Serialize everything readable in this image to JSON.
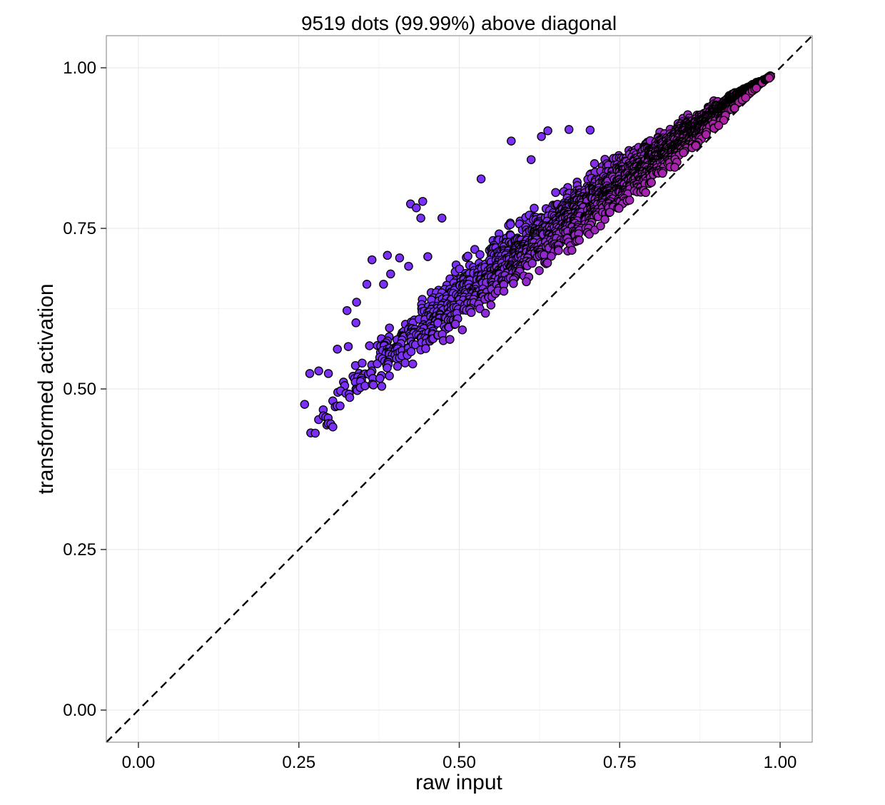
{
  "chart_data": {
    "type": "scatter",
    "title": "9519 dots (99.99%) above diagonal",
    "xlabel": "raw input",
    "ylabel": "transformed activation",
    "xlim": [
      -0.05,
      1.05
    ],
    "ylim": [
      -0.05,
      1.05
    ],
    "x_ticks": [
      "0.00",
      "0.25",
      "0.50",
      "0.75",
      "1.00"
    ],
    "y_ticks": [
      "0.00",
      "0.25",
      "0.50",
      "0.75",
      "1.00"
    ],
    "grid": true,
    "reference_line": {
      "type": "identity",
      "style": "dashed",
      "color": "#000000"
    },
    "colors": {
      "low": "#7B2FF7",
      "mid": "#B0209E",
      "high": "#E8232E",
      "outline": "#000000"
    },
    "points_shown": 9519,
    "percent_above_diagonal": 99.99,
    "outliers": [
      [
        0.259,
        0.476
      ],
      [
        0.267,
        0.524
      ],
      [
        0.281,
        0.528
      ],
      [
        0.31,
        0.562
      ],
      [
        0.327,
        0.566
      ],
      [
        0.325,
        0.622
      ],
      [
        0.339,
        0.603
      ],
      [
        0.34,
        0.635
      ],
      [
        0.356,
        0.663
      ],
      [
        0.364,
        0.701
      ],
      [
        0.382,
        0.663
      ],
      [
        0.388,
        0.708
      ],
      [
        0.393,
        0.679
      ],
      [
        0.407,
        0.704
      ],
      [
        0.421,
        0.691
      ],
      [
        0.424,
        0.788
      ],
      [
        0.433,
        0.782
      ],
      [
        0.44,
        0.766
      ],
      [
        0.443,
        0.792
      ],
      [
        0.451,
        0.706
      ],
      [
        0.473,
        0.766
      ],
      [
        0.534,
        0.827
      ],
      [
        0.581,
        0.886
      ],
      [
        0.628,
        0.893
      ],
      [
        0.638,
        0.902
      ],
      [
        0.671,
        0.904
      ],
      [
        0.704,
        0.903
      ],
      [
        0.612,
        0.857
      ],
      [
        0.296,
        0.524
      ],
      [
        0.315,
        0.497
      ],
      [
        0.288,
        0.458
      ]
    ],
    "band": {
      "x_range": [
        0.26,
        0.985
      ],
      "lower_edge": [
        [
          0.26,
          0.4
        ],
        [
          0.35,
          0.47
        ],
        [
          0.5,
          0.57
        ],
        [
          0.65,
          0.69
        ],
        [
          0.8,
          0.8
        ],
        [
          0.9,
          0.88
        ],
        [
          0.985,
          0.985
        ]
      ],
      "upper_edge": [
        [
          0.26,
          0.44
        ],
        [
          0.33,
          0.55
        ],
        [
          0.45,
          0.66
        ],
        [
          0.55,
          0.75
        ],
        [
          0.65,
          0.82
        ],
        [
          0.75,
          0.88
        ],
        [
          0.85,
          0.93
        ],
        [
          0.95,
          0.975
        ],
        [
          0.985,
          0.985
        ]
      ]
    }
  }
}
